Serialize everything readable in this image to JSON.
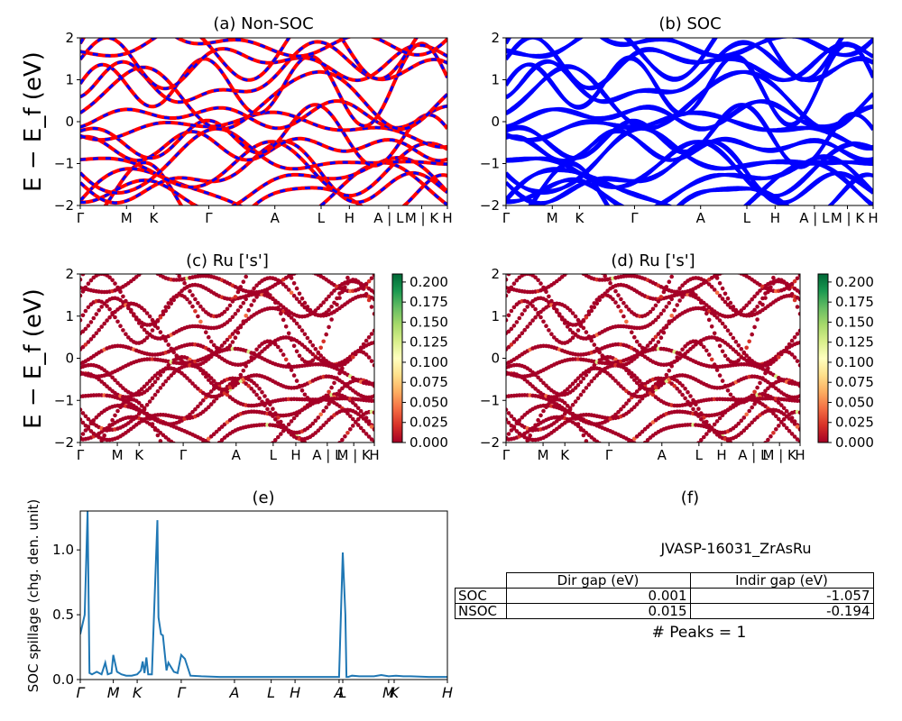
{
  "figure": {
    "panels": {
      "a": {
        "title": "(a) Non-SOC"
      },
      "b": {
        "title": "(b) SOC"
      },
      "c": {
        "title": "(c)  Ru ['s']"
      },
      "d": {
        "title": "(d) Ru ['s']"
      },
      "e": {
        "title": "(e)"
      },
      "f": {
        "title": "(f)"
      }
    },
    "band_ylabel": "E − E_f (eV)",
    "band_yticks": [
      "2",
      "1",
      "0",
      "−1",
      "−2"
    ],
    "kpath_labels": [
      "Γ",
      "M",
      "K",
      "Γ",
      "A",
      "L",
      "H",
      "A | L",
      "M | K",
      "H"
    ],
    "spillage_xticks": [
      "Γ",
      "M",
      "K",
      "Γ",
      "A",
      "L",
      "H",
      "A",
      "L",
      "M",
      "K",
      "H"
    ],
    "colorbar_ticks": [
      "0.200",
      "0.175",
      "0.150",
      "0.125",
      "0.100",
      "0.075",
      "0.050",
      "0.025",
      "0.000"
    ]
  },
  "info": {
    "material": "JVASP-16031_ZrAsRu",
    "table": {
      "headers": [
        "Dir gap (eV)",
        "Indir gap (eV)"
      ],
      "rows": [
        {
          "label": "SOC",
          "dir": "0.001",
          "indir": "-1.057"
        },
        {
          "label": "NSOC",
          "dir": "0.015",
          "indir": "-0.194"
        }
      ]
    },
    "peaks": "# Peaks = 1"
  },
  "chart_data": [
    {
      "panel": "a",
      "type": "line",
      "title": "(a) Non-SOC",
      "ylabel": "E − E_f (eV)",
      "ylim": [
        -2,
        2
      ],
      "xticklabels": [
        "Γ",
        "M",
        "K",
        "Γ",
        "A",
        "L",
        "H",
        "A | L",
        "M | K",
        "H"
      ],
      "series": [
        {
          "color": "#ff0000"
        },
        {
          "color": "#0000ff",
          "style": "dashed"
        }
      ]
    },
    {
      "panel": "b",
      "type": "line",
      "title": "(b) SOC",
      "ylim": [
        -2,
        2
      ],
      "xticklabels": [
        "Γ",
        "M",
        "K",
        "Γ",
        "A",
        "L",
        "H",
        "A | L",
        "M | K",
        "H"
      ],
      "series": [
        {
          "color": "#0000ff"
        }
      ]
    },
    {
      "panel": "c",
      "type": "scatter",
      "title": "(c)  Ru ['s']",
      "ylabel": "E − E_f (eV)",
      "ylim": [
        -2,
        2
      ],
      "xticklabels": [
        "Γ",
        "M",
        "K",
        "Γ",
        "A",
        "L",
        "H",
        "A | L",
        "M | K",
        "H"
      ],
      "colorbar": {
        "min": 0,
        "max": 0.21,
        "cmap": "RdYlGn"
      }
    },
    {
      "panel": "d",
      "type": "scatter",
      "title": "(d) Ru ['s']",
      "ylim": [
        -2,
        2
      ],
      "xticklabels": [
        "Γ",
        "M",
        "K",
        "Γ",
        "A",
        "L",
        "H",
        "A | L",
        "M | K",
        "H"
      ],
      "colorbar": {
        "min": 0,
        "max": 0.21,
        "cmap": "RdYlGn"
      }
    },
    {
      "panel": "e",
      "type": "line",
      "title": "(e)",
      "ylabel": "SOC spillage (chg. den. unit)",
      "ylim": [
        0,
        1.3
      ],
      "yticks": [
        0.0,
        0.5,
        1.0
      ],
      "xticklabels": [
        "Γ",
        "M",
        "K",
        "Γ",
        "A",
        "L",
        "H",
        "A",
        "L",
        "M",
        "K",
        "H"
      ],
      "x": [
        0,
        0.012,
        0.02,
        0.025,
        0.032,
        0.045,
        0.058,
        0.068,
        0.075,
        0.085,
        0.09,
        0.1,
        0.112,
        0.125,
        0.14,
        0.155,
        0.165,
        0.17,
        0.175,
        0.18,
        0.185,
        0.195,
        0.21,
        0.213,
        0.22,
        0.225,
        0.235,
        0.24,
        0.255,
        0.265,
        0.275,
        0.285,
        0.3,
        0.33,
        0.38,
        0.42,
        0.48,
        0.54,
        0.6,
        0.65,
        0.69,
        0.705,
        0.715,
        0.722,
        0.725,
        0.73,
        0.74,
        0.76,
        0.78,
        0.8,
        0.82,
        0.84,
        0.86,
        0.88,
        0.9,
        0.95,
        1.0
      ],
      "y": [
        0.35,
        0.5,
        1.3,
        0.05,
        0.04,
        0.06,
        0.04,
        0.13,
        0.04,
        0.05,
        0.19,
        0.06,
        0.04,
        0.03,
        0.03,
        0.04,
        0.07,
        0.14,
        0.05,
        0.17,
        0.04,
        0.04,
        1.23,
        0.48,
        0.35,
        0.34,
        0.07,
        0.13,
        0.06,
        0.05,
        0.19,
        0.16,
        0.03,
        0.025,
        0.02,
        0.02,
        0.02,
        0.02,
        0.02,
        0.02,
        0.02,
        0.02,
        0.98,
        0.5,
        0.02,
        0.02,
        0.03,
        0.025,
        0.025,
        0.025,
        0.035,
        0.025,
        0.03,
        0.025,
        0.025,
        0.02,
        0.02
      ]
    }
  ]
}
